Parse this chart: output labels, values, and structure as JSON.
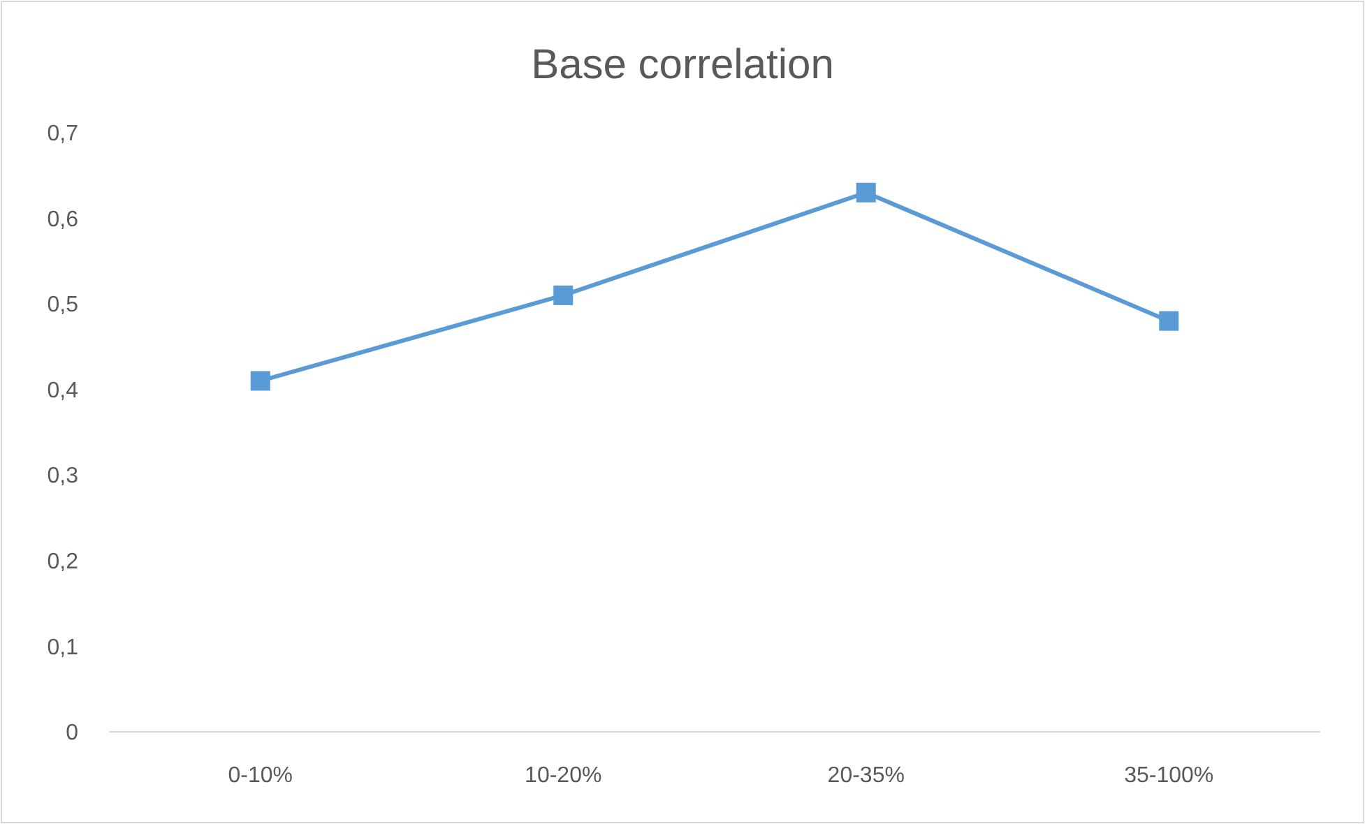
{
  "chart_data": {
    "type": "line",
    "title": "Base correlation",
    "categories": [
      "0-10%",
      "10-20%",
      "20-35%",
      "35-100%"
    ],
    "series": [
      {
        "color": "#5b9bd5",
        "values": [
          0.41,
          0.51,
          0.63,
          0.48
        ]
      }
    ],
    "ylim": [
      0,
      0.7
    ],
    "yticks": [
      0,
      {
        "value": 0.1,
        "label": "0,1"
      },
      {
        "value": 0.2,
        "label": "0,2"
      },
      {
        "value": 0.3,
        "label": "0,3"
      },
      {
        "value": 0.4,
        "label": "0,4"
      },
      {
        "value": 0.5,
        "label": "0,5"
      },
      {
        "value": 0.6,
        "label": "0,6"
      },
      {
        "value": 0.7,
        "label": "0,7"
      }
    ],
    "grid": false,
    "marker": "square",
    "line_style": "solid"
  }
}
